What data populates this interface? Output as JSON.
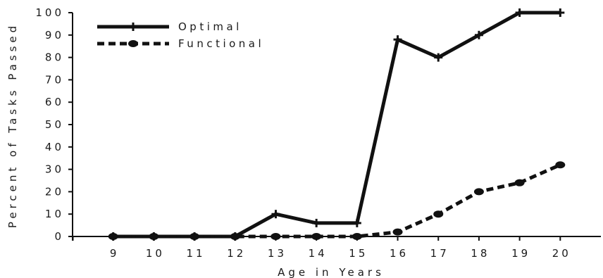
{
  "chart_data": {
    "type": "line",
    "xlabel": "Age in Years",
    "ylabel": "Percent of Tasks Passed",
    "x": [
      9,
      10,
      11,
      12,
      13,
      14,
      15,
      16,
      17,
      18,
      19,
      20
    ],
    "xlim": [
      8,
      21
    ],
    "ylim": [
      0,
      100
    ],
    "yticks": [
      0,
      10,
      20,
      30,
      40,
      50,
      60,
      70,
      80,
      90,
      100
    ],
    "ytick_labels": [
      "0",
      "10",
      "20",
      "30",
      "40",
      "50",
      "60",
      "70",
      "80",
      "90",
      "100"
    ],
    "xtick_labels": [
      "9",
      "10",
      "11",
      "12",
      "13",
      "14",
      "15",
      "16",
      "17",
      "18",
      "19",
      "20"
    ],
    "grid": false,
    "legend_position": "top-left",
    "series": [
      {
        "name": "Optimal",
        "values": [
          0,
          0,
          0,
          0,
          10,
          6,
          6,
          88,
          80,
          90,
          100,
          100
        ],
        "line_style": "solid",
        "marker": "plus",
        "color": "#111111"
      },
      {
        "name": "Functional",
        "values": [
          0,
          0,
          0,
          0,
          0,
          0,
          0,
          2,
          10,
          20,
          24,
          32
        ],
        "line_style": "dashed",
        "marker": "circle",
        "color": "#111111"
      }
    ]
  }
}
